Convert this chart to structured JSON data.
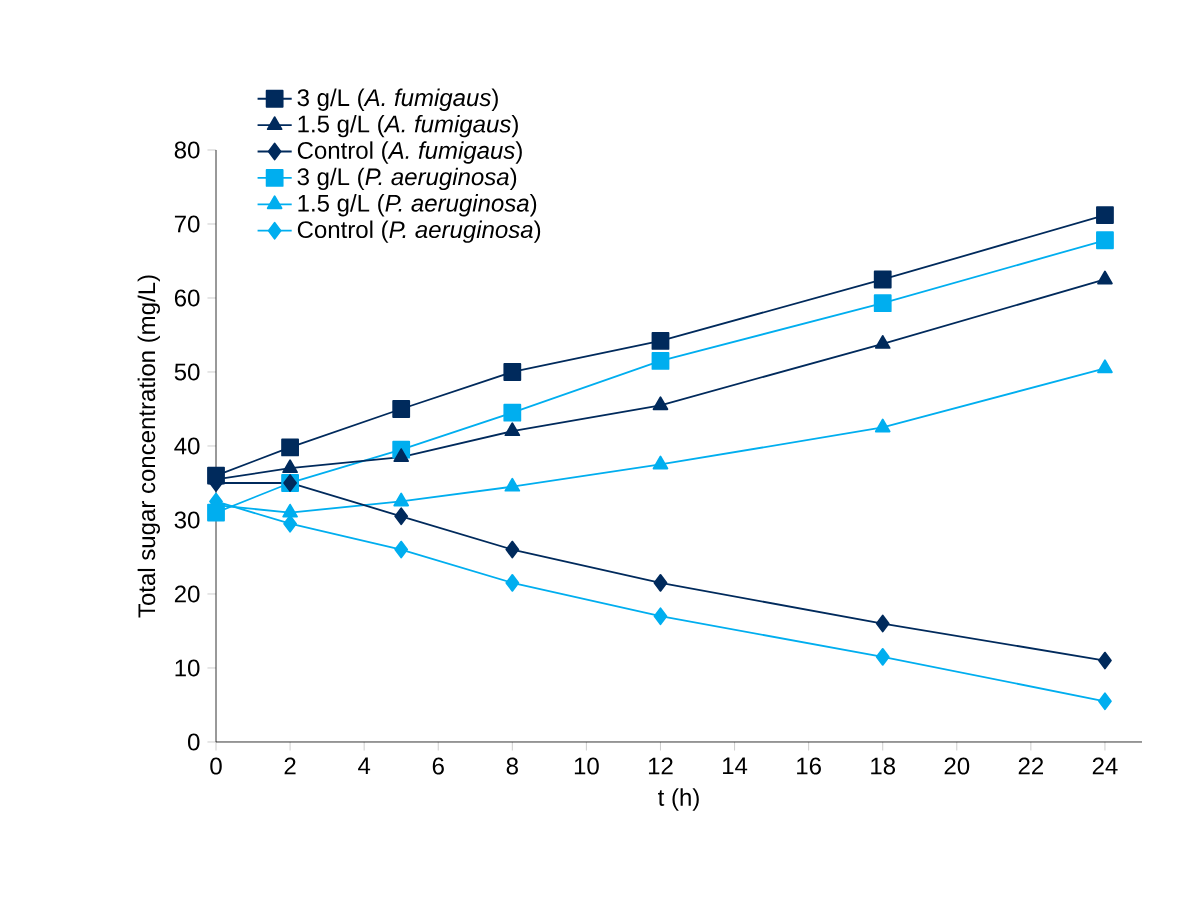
{
  "chart_data": {
    "type": "line",
    "xlabel": "t (h)",
    "ylabel": "Total sugar concentration (mg/L)",
    "x": [
      0,
      2,
      5,
      8,
      12,
      18,
      24
    ],
    "series": [
      {
        "name": "3 g/L (*A. fumigaus*)",
        "color": "#002a5c",
        "marker": "square",
        "values": [
          36,
          39.8,
          45,
          50,
          54.2,
          62.5,
          71.2
        ]
      },
      {
        "name": "1.5 g/L (*A. fumigaus*)",
        "color": "#002a5c",
        "marker": "triangle",
        "values": [
          35.5,
          37,
          38.5,
          42,
          45.5,
          53.8,
          62.5
        ]
      },
      {
        "name": "Control (*A. fumigaus*)",
        "color": "#002a5c",
        "marker": "diamond",
        "values": [
          35,
          35,
          30.5,
          26,
          21.5,
          16,
          11
        ]
      },
      {
        "name": "3 g/L (*P. aeruginosa*)",
        "color": "#00aeef",
        "marker": "square",
        "values": [
          31,
          35,
          39.5,
          44.5,
          51.5,
          59.3,
          67.8
        ]
      },
      {
        "name": "1.5 g/L (*P. aeruginosa*)",
        "color": "#00aeef",
        "marker": "triangle",
        "values": [
          32,
          31,
          32.5,
          34.5,
          37.5,
          42.5,
          50.5
        ]
      },
      {
        "name": "Control (*P. aeruginosa*)",
        "color": "#00aeef",
        "marker": "diamond",
        "values": [
          32.5,
          29.5,
          26,
          21.5,
          17,
          11.5,
          5.5
        ]
      }
    ],
    "xlim": [
      0,
      25
    ],
    "xticks": [
      0,
      2,
      4,
      6,
      8,
      10,
      12,
      14,
      16,
      18,
      20,
      22,
      24
    ],
    "ylim": [
      0,
      80
    ],
    "yticks": [
      0,
      10,
      20,
      30,
      40,
      50,
      60,
      70,
      80
    ],
    "grid": false,
    "legend": "top left",
    "line_style": "solid"
  }
}
